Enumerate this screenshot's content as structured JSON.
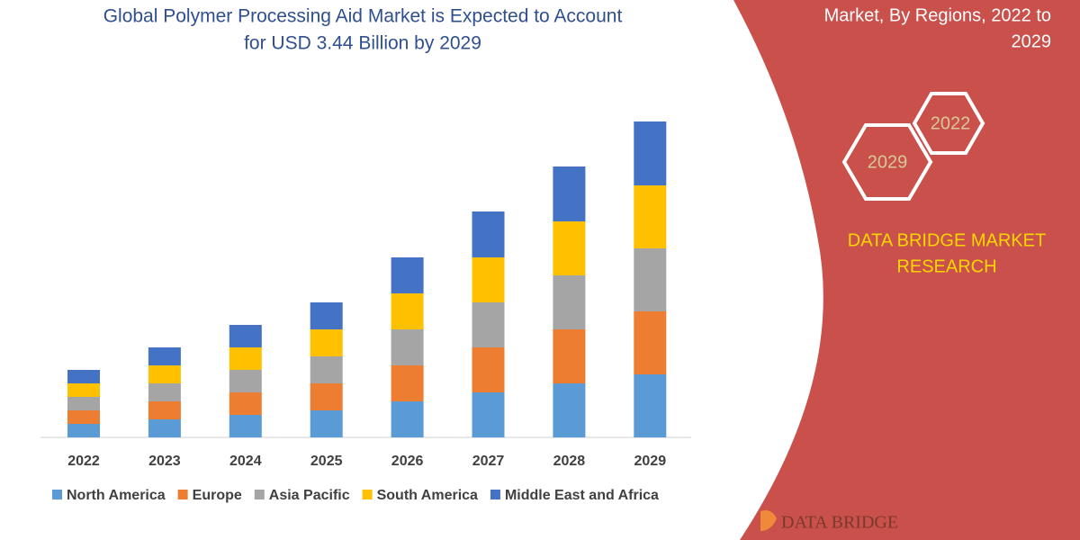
{
  "chart_data": {
    "type": "stacked_bar",
    "title": [
      "Global Polymer Processing Aid Market is Expected to Account",
      "for USD 3.44 Billion by 2029"
    ],
    "categories": [
      "2022",
      "2023",
      "2024",
      "2025",
      "2026",
      "2027",
      "2028",
      "2029"
    ],
    "series": [
      {
        "name": "North America",
        "color": "#5b9bd5",
        "values": [
          15,
          20,
          25,
          30,
          40,
          50,
          60,
          70
        ]
      },
      {
        "name": "Europe",
        "color": "#ed7d31",
        "values": [
          15,
          20,
          25,
          30,
          40,
          50,
          60,
          70
        ]
      },
      {
        "name": "Asia Pacific",
        "color": "#a5a5a5",
        "values": [
          15,
          20,
          25,
          30,
          40,
          50,
          60,
          70
        ]
      },
      {
        "name": "South America",
        "color": "#ffc000",
        "values": [
          15,
          20,
          25,
          30,
          40,
          50,
          60,
          70
        ]
      },
      {
        "name": "Middle East and Africa",
        "color": "#4472c4",
        "values": [
          15,
          20,
          25,
          30,
          40,
          51,
          61,
          71
        ]
      }
    ]
  },
  "panel": {
    "heading": [
      "Market, By Regions, 2022 to",
      "2029"
    ],
    "badges": [
      "2022",
      "2029"
    ],
    "brand": [
      "DATA BRIDGE MARKET",
      "RESEARCH"
    ],
    "logo": "DATA BRIDGE"
  }
}
